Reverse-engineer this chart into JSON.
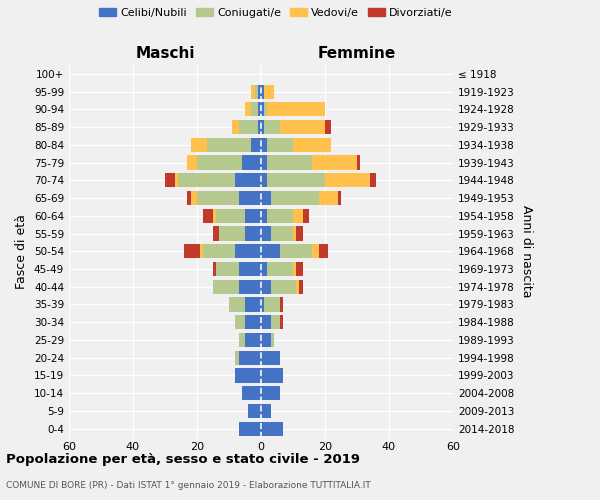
{
  "age_groups": [
    "0-4",
    "5-9",
    "10-14",
    "15-19",
    "20-24",
    "25-29",
    "30-34",
    "35-39",
    "40-44",
    "45-49",
    "50-54",
    "55-59",
    "60-64",
    "65-69",
    "70-74",
    "75-79",
    "80-84",
    "85-89",
    "90-94",
    "95-99",
    "100+"
  ],
  "birth_years": [
    "2014-2018",
    "2009-2013",
    "2004-2008",
    "1999-2003",
    "1994-1998",
    "1989-1993",
    "1984-1988",
    "1979-1983",
    "1974-1978",
    "1969-1973",
    "1964-1968",
    "1959-1963",
    "1954-1958",
    "1949-1953",
    "1944-1948",
    "1939-1943",
    "1934-1938",
    "1929-1933",
    "1924-1928",
    "1919-1923",
    "≤ 1918"
  ],
  "maschi": {
    "celibi": [
      7,
      4,
      6,
      8,
      7,
      5,
      5,
      5,
      7,
      7,
      8,
      5,
      5,
      7,
      8,
      6,
      3,
      1,
      1,
      1,
      0
    ],
    "coniugati": [
      0,
      0,
      0,
      0,
      1,
      2,
      3,
      5,
      8,
      7,
      10,
      8,
      9,
      13,
      18,
      14,
      14,
      6,
      2,
      1,
      0
    ],
    "vedovi": [
      0,
      0,
      0,
      0,
      0,
      0,
      0,
      0,
      0,
      0,
      1,
      0,
      1,
      2,
      1,
      3,
      5,
      2,
      2,
      1,
      0
    ],
    "divorziati": [
      0,
      0,
      0,
      0,
      0,
      0,
      0,
      0,
      0,
      1,
      5,
      2,
      3,
      1,
      3,
      0,
      0,
      0,
      0,
      0,
      0
    ]
  },
  "femmine": {
    "nubili": [
      7,
      3,
      6,
      7,
      6,
      3,
      3,
      1,
      3,
      2,
      6,
      3,
      2,
      3,
      2,
      2,
      2,
      1,
      1,
      1,
      0
    ],
    "coniugate": [
      0,
      0,
      0,
      0,
      0,
      1,
      3,
      5,
      8,
      8,
      10,
      7,
      8,
      15,
      18,
      14,
      8,
      5,
      1,
      0,
      0
    ],
    "vedove": [
      0,
      0,
      0,
      0,
      0,
      0,
      0,
      0,
      1,
      1,
      2,
      1,
      3,
      6,
      14,
      14,
      12,
      14,
      18,
      3,
      0
    ],
    "divorziate": [
      0,
      0,
      0,
      0,
      0,
      0,
      1,
      1,
      1,
      2,
      3,
      2,
      2,
      1,
      2,
      1,
      0,
      2,
      0,
      0,
      0
    ]
  },
  "colors": {
    "celibi": "#4472c4",
    "coniugati": "#b5c98e",
    "vedovi": "#ffc04c",
    "divorziati": "#c0392b"
  },
  "title": "Popolazione per età, sesso e stato civile - 2019",
  "subtitle": "COMUNE DI BORE (PR) - Dati ISTAT 1° gennaio 2019 - Elaborazione TUTTITALIA.IT",
  "xlabel_left": "Maschi",
  "xlabel_right": "Femmine",
  "ylabel_left": "Fasce di età",
  "ylabel_right": "Anni di nascita",
  "xlim": 60,
  "bg_color": "#f0f0f0",
  "legend_labels": [
    "Celibi/Nubili",
    "Coniugati/e",
    "Vedovi/e",
    "Divorziati/e"
  ]
}
